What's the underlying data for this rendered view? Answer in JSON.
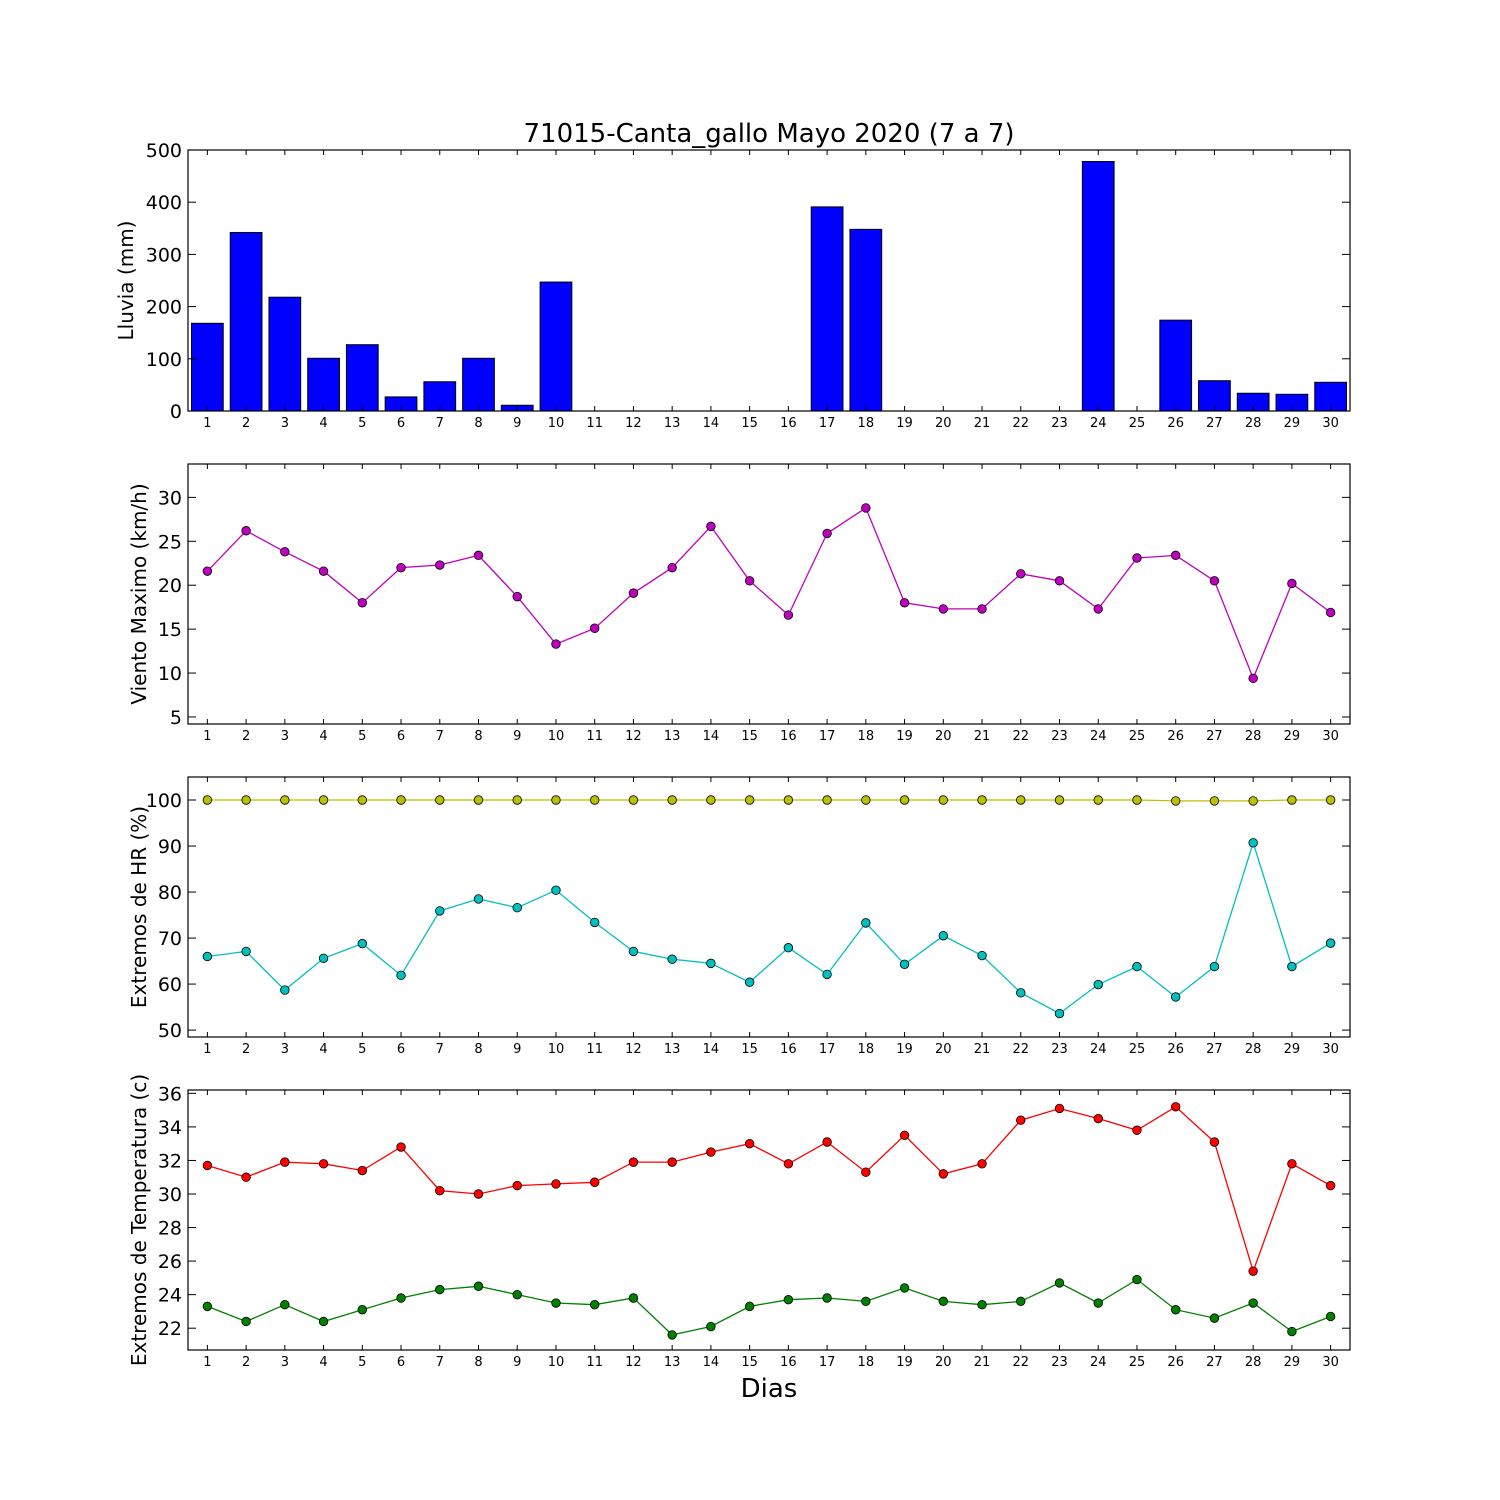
{
  "figure": {
    "title": "71015-Canta_gallo Mayo 2020  (7 a 7)",
    "xlabel": "Dias"
  },
  "chart_data": [
    {
      "type": "bar",
      "ylabel": "Lluvia (mm)",
      "ylim": [
        0,
        500
      ],
      "yticks": [
        0,
        100,
        200,
        300,
        400,
        500
      ],
      "x": [
        1,
        2,
        3,
        4,
        5,
        6,
        7,
        8,
        9,
        10,
        11,
        12,
        13,
        14,
        15,
        16,
        17,
        18,
        19,
        20,
        21,
        22,
        23,
        24,
        25,
        26,
        27,
        28,
        29,
        30
      ],
      "values": [
        168,
        342,
        218,
        101,
        127,
        27,
        56,
        101,
        11,
        247,
        0,
        0,
        0,
        0,
        0,
        0,
        391,
        348,
        0,
        0,
        0,
        0,
        0,
        478,
        0,
        174,
        58,
        34,
        32,
        55
      ],
      "color": "#0000ff",
      "grid": false
    },
    {
      "type": "line",
      "ylabel": "Viento Maximo (km/h)",
      "ylim": [
        4.2,
        33.8
      ],
      "yticks": [
        5,
        10,
        15,
        20,
        25,
        30
      ],
      "x": [
        1,
        2,
        3,
        4,
        5,
        6,
        7,
        8,
        9,
        10,
        11,
        12,
        13,
        14,
        15,
        16,
        17,
        18,
        19,
        20,
        21,
        22,
        23,
        24,
        25,
        26,
        27,
        28,
        29,
        30
      ],
      "series": [
        {
          "values": [
            21.6,
            26.2,
            23.8,
            21.6,
            18.0,
            22.0,
            22.3,
            23.4,
            18.7,
            13.3,
            15.1,
            19.1,
            22.0,
            26.7,
            20.5,
            16.6,
            25.9,
            28.8,
            18.0,
            17.3,
            17.3,
            21.3,
            20.5,
            17.3,
            23.1,
            23.4,
            20.5,
            9.4,
            20.2,
            16.9
          ],
          "color": "#bf00bf"
        }
      ],
      "grid": false
    },
    {
      "type": "line",
      "ylabel": "Extremos de HR (%)",
      "ylim": [
        48.5,
        105
      ],
      "yticks": [
        50,
        60,
        70,
        80,
        90,
        100
      ],
      "x": [
        1,
        2,
        3,
        4,
        5,
        6,
        7,
        8,
        9,
        10,
        11,
        12,
        13,
        14,
        15,
        16,
        17,
        18,
        19,
        20,
        21,
        22,
        23,
        24,
        25,
        26,
        27,
        28,
        29,
        30
      ],
      "series": [
        {
          "values": [
            100,
            100,
            100,
            100,
            100,
            100,
            100,
            100,
            100,
            100,
            100,
            100,
            100,
            100,
            100,
            100,
            100,
            100,
            100,
            100,
            100,
            100,
            100,
            100,
            100,
            99.8,
            99.8,
            99.8,
            100,
            100
          ],
          "color": "#bfbf00"
        },
        {
          "values": [
            66.0,
            67.1,
            58.7,
            65.6,
            68.8,
            61.9,
            75.9,
            78.5,
            76.6,
            80.4,
            73.4,
            67.1,
            65.4,
            64.5,
            60.4,
            67.9,
            62.1,
            73.3,
            64.3,
            70.5,
            66.2,
            58.1,
            53.6,
            59.9,
            63.8,
            57.2,
            63.8,
            90.7,
            63.8,
            68.9
          ],
          "color": "#00bfbf"
        }
      ],
      "grid": false
    },
    {
      "type": "line",
      "ylabel": "Extremos de Temperatura (c)",
      "ylim": [
        20.7,
        36.2
      ],
      "yticks": [
        22,
        24,
        26,
        28,
        30,
        32,
        34,
        36
      ],
      "x": [
        1,
        2,
        3,
        4,
        5,
        6,
        7,
        8,
        9,
        10,
        11,
        12,
        13,
        14,
        15,
        16,
        17,
        18,
        19,
        20,
        21,
        22,
        23,
        24,
        25,
        26,
        27,
        28,
        29,
        30
      ],
      "series": [
        {
          "values": [
            31.7,
            31.0,
            31.9,
            31.8,
            31.4,
            32.8,
            30.2,
            30.0,
            30.5,
            30.6,
            30.7,
            31.9,
            31.9,
            32.5,
            33.0,
            31.8,
            33.1,
            31.3,
            33.5,
            31.2,
            31.8,
            34.4,
            35.1,
            34.5,
            33.8,
            35.2,
            33.1,
            25.4,
            31.8,
            30.5
          ],
          "color": "#ff0000"
        },
        {
          "values": [
            23.3,
            22.4,
            23.4,
            22.4,
            23.1,
            23.8,
            24.3,
            24.5,
            24.0,
            23.5,
            23.4,
            23.8,
            21.6,
            22.1,
            23.3,
            23.7,
            23.8,
            23.6,
            24.4,
            23.6,
            23.4,
            23.6,
            24.7,
            23.5,
            24.9,
            23.1,
            22.6,
            23.5,
            21.8,
            22.7
          ],
          "color": "#008000"
        }
      ],
      "grid": false
    }
  ]
}
